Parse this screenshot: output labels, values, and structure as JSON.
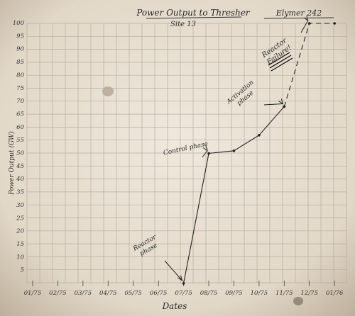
{
  "chart_data": {
    "type": "line",
    "title": "Power Output to Thresher",
    "subtitle": "Site 13",
    "signature": "Elymer 242",
    "xlabel": "Dates",
    "ylabel": "Power Output (GW)",
    "x_ticks": [
      "01/75",
      "02/75",
      "03/75",
      "04/75",
      "05/75",
      "06/75",
      "07/75",
      "08/75",
      "09/75",
      "10/75",
      "11/75",
      "12/75",
      "01/76"
    ],
    "y_ticks": [
      "5",
      "10",
      "15",
      "20",
      "25",
      "30",
      "35",
      "40",
      "45",
      "50",
      "55",
      "60",
      "65",
      "70",
      "75",
      "80",
      "85",
      "90",
      "95",
      "100"
    ],
    "ylim": [
      0,
      100
    ],
    "grid": true,
    "series": [
      {
        "style": "solid",
        "x": [
          "07/75",
          "08/75",
          "09/75",
          "10/75",
          "11/75"
        ],
        "y": [
          0,
          50,
          51,
          57,
          68
        ]
      },
      {
        "style": "dashed",
        "x": [
          "11/75",
          "12/75",
          "01/76"
        ],
        "y": [
          68,
          100,
          100
        ]
      }
    ],
    "annotations": [
      {
        "text": "Reactor phase",
        "x": "07/75",
        "y": 0
      },
      {
        "text": "Control phase",
        "x": "08/75",
        "y": 50
      },
      {
        "text": "Activation phase",
        "x": "11/75",
        "y": 68
      },
      {
        "text": "Reactor Failure!",
        "x": "12/75",
        "y": 100
      }
    ]
  }
}
